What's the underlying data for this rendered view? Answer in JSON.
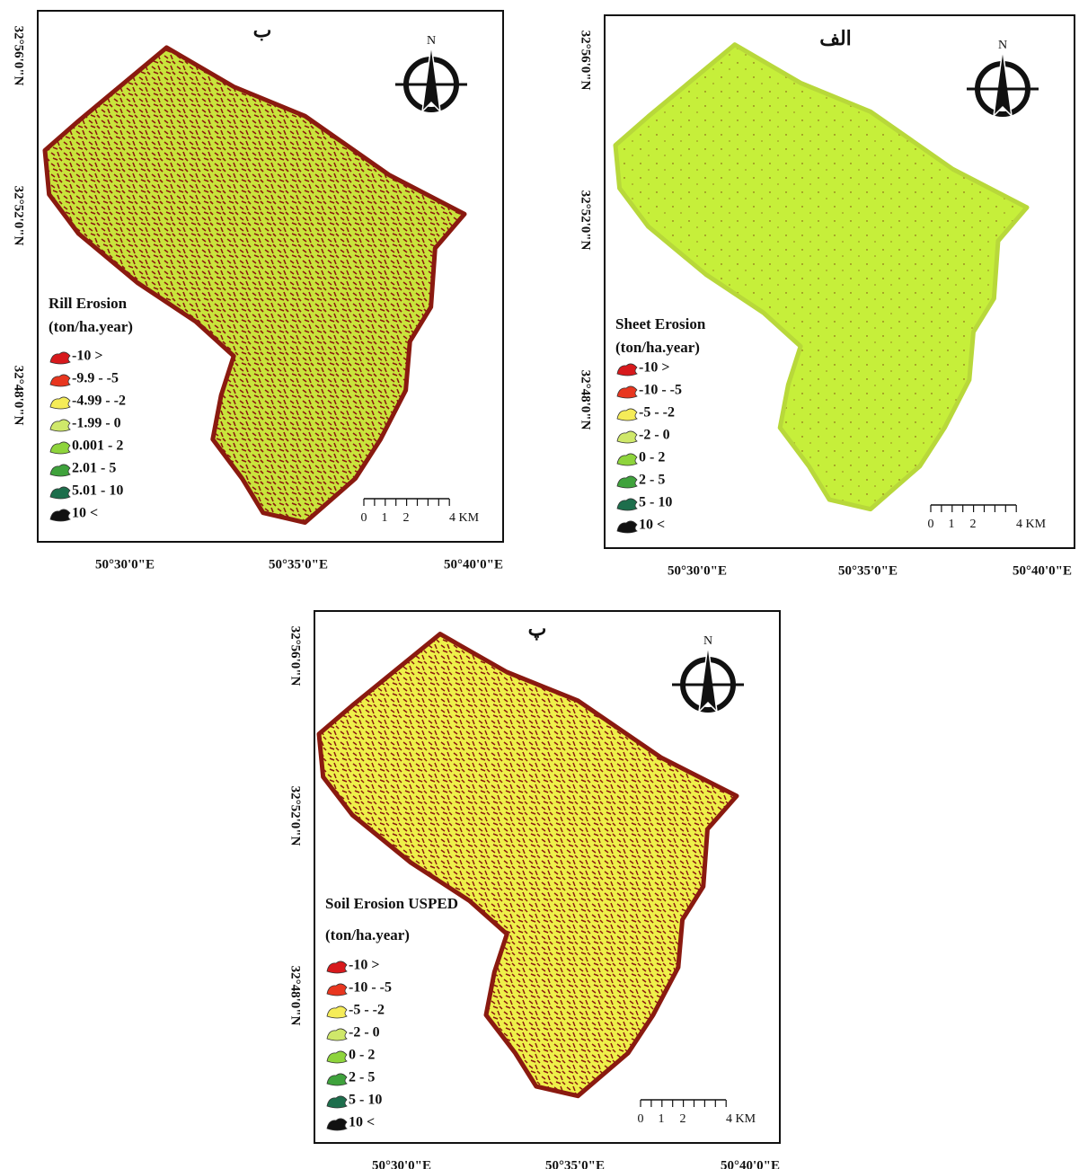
{
  "north_label": "N",
  "panels": [
    {
      "label": "ب",
      "legend_title": [
        "Rill Erosion",
        "(ton/ha.year)"
      ],
      "legend": [
        {
          "label": "-10 >",
          "color": "#d7191c"
        },
        {
          "label": "-9.9 - -5",
          "color": "#e8361f"
        },
        {
          "label": "-4.99 - -2",
          "color": "#f5ec58"
        },
        {
          "label": "-1.99 - 0",
          "color": "#cfe86a"
        },
        {
          "label": "0.001 - 2",
          "color": "#8ed43c"
        },
        {
          "label": "2.01 - 5",
          "color": "#3fa23c"
        },
        {
          "label": "5.01 - 10",
          "color": "#1d6e4c"
        },
        {
          "label": "10 <",
          "color": "#111111"
        }
      ],
      "scale_labels": [
        "0",
        "1",
        "2",
        "4 KM"
      ],
      "lat_labels": [
        "32°56'0\"N",
        "32°52'0\"N",
        "32°48'0\"N"
      ],
      "lon_labels": [
        "50°30'0\"E",
        "50°35'0\"E",
        "50°40'0\"E"
      ]
    },
    {
      "label": "الف",
      "legend_title": [
        "Sheet Erosion",
        "(ton/ha.year)"
      ],
      "legend": [
        {
          "label": "-10 >",
          "color": "#d7191c"
        },
        {
          "label": "-10 - -5",
          "color": "#e8361f"
        },
        {
          "label": "-5 - -2",
          "color": "#f5ec58"
        },
        {
          "label": "-2 - 0",
          "color": "#cfe86a"
        },
        {
          "label": "0 - 2",
          "color": "#8ed43c"
        },
        {
          "label": "2 - 5",
          "color": "#3fa23c"
        },
        {
          "label": "5 - 10",
          "color": "#1d6e4c"
        },
        {
          "label": "10 <",
          "color": "#111111"
        }
      ],
      "scale_labels": [
        "0",
        "1",
        "2",
        "4 KM"
      ],
      "lat_labels": [
        "32°56'0\"N",
        "32°52'0\"N",
        "32°48'0\"N"
      ],
      "lon_labels": [
        "50°30'0\"E",
        "50°35'0\"E",
        "50°40'0\"E"
      ]
    },
    {
      "label": "پ",
      "legend_title": [
        "Soil Erosion USPED",
        "(ton/ha.year)"
      ],
      "legend": [
        {
          "label": "-10 >",
          "color": "#d7191c"
        },
        {
          "label": "-10 - -5",
          "color": "#e8361f"
        },
        {
          "label": "-5 - -2",
          "color": "#f5ec58"
        },
        {
          "label": "-2 - 0",
          "color": "#cfe86a"
        },
        {
          "label": "0 - 2",
          "color": "#8ed43c"
        },
        {
          "label": "2 - 5",
          "color": "#3fa23c"
        },
        {
          "label": "5 - 10",
          "color": "#1d6e4c"
        },
        {
          "label": "10 <",
          "color": "#111111"
        }
      ],
      "scale_labels": [
        "0",
        "1",
        "2",
        "4 KM"
      ],
      "lat_labels": [
        "32°56'0\"N",
        "32°52'0\"N",
        "32°48'0\"N"
      ],
      "lon_labels": [
        "50°30'0\"E",
        "50°35'0\"E",
        "50°40'0\"E"
      ]
    }
  ]
}
